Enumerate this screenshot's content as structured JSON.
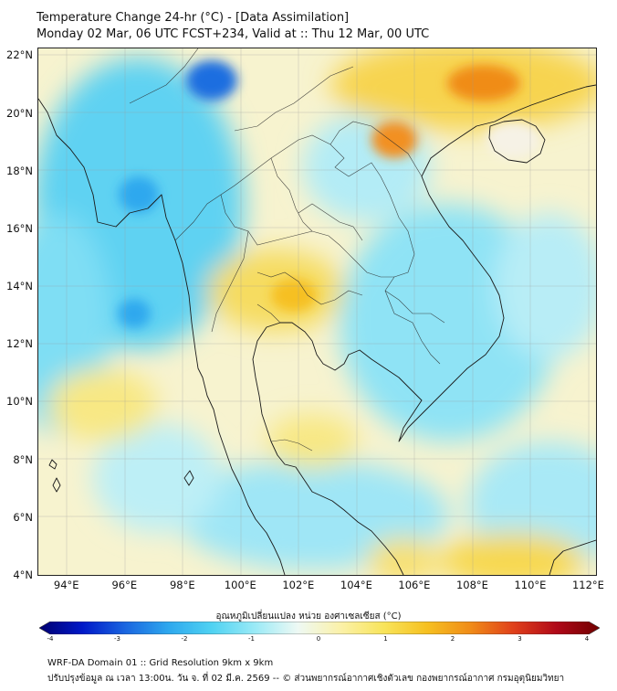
{
  "title": {
    "line1": "Temperature Change 24-hr (°C) - [Data Assimilation]",
    "line2": "Monday 02 Mar, 06 UTC FCST+234, Valid at :: Thu 12 Mar, 00 UTC"
  },
  "map": {
    "lat_labels": [
      "22°N",
      "20°N",
      "18°N",
      "16°N",
      "14°N",
      "12°N",
      "10°N",
      "8°N",
      "6°N",
      "4°N"
    ],
    "lon_labels": [
      "94°E",
      "96°E",
      "98°E",
      "100°E",
      "102°E",
      "104°E",
      "106°E",
      "108°E",
      "110°E",
      "112°E"
    ],
    "lat_range": [
      4,
      22.3
    ],
    "lon_range": [
      93,
      112.3
    ]
  },
  "colorbar": {
    "title": "อุณหภูมิเปลี่ยนแปลง หน่วย องศาเซลเซียส (°C)",
    "tick_labels": [
      "-4",
      "-3",
      "-2",
      "-1",
      "0",
      "1",
      "2",
      "3",
      "4"
    ],
    "range": [
      -4,
      4
    ],
    "colors": [
      "#000070",
      "#0018c8",
      "#1a66e0",
      "#2ea8ee",
      "#4fd2f2",
      "#9aeaf6",
      "#eef9f4",
      "#fbf1a8",
      "#f8e45a",
      "#f6c020",
      "#f08c18",
      "#e0401a",
      "#b00818",
      "#700000"
    ]
  },
  "footer": {
    "line1": "WRF-DA Domain 01 :: Grid Resolution 9km x 9km",
    "line2": "ปรับปรุงข้อมูล ณ เวลา 13:00น. วัน จ. ที่ 02 มี.ค. 2569 -- © ส่วนพยากรณ์อากาศเชิงตัวเลข กองพยากรณ์อากาศ กรมอุตุนิยมวิทยา"
  }
}
